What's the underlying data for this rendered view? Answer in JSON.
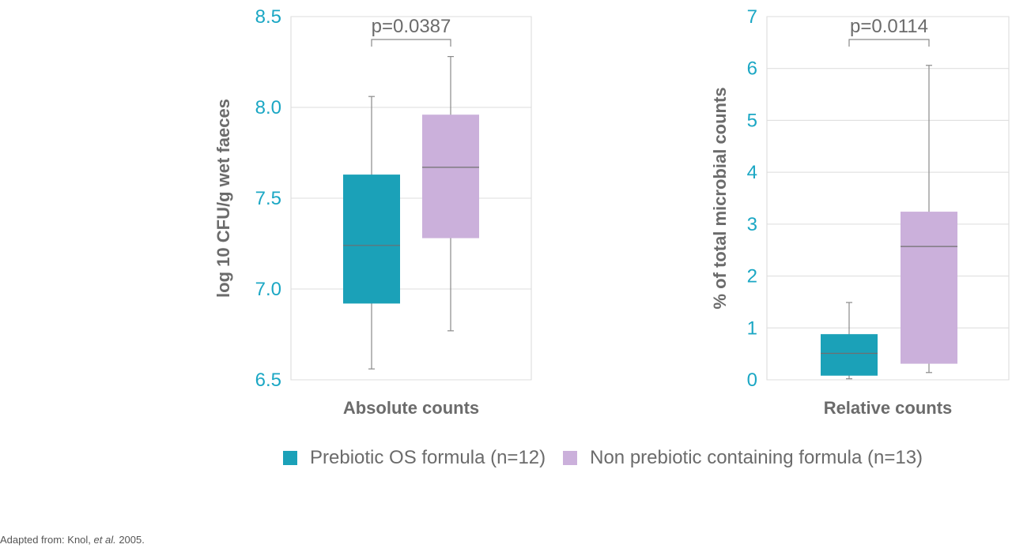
{
  "colors": {
    "prebiotic": "#1ba1b8",
    "non_prebiotic": "#cbb0db",
    "tick_text": "#1ba7c4",
    "label_text": "#6b6b6b"
  },
  "legend": {
    "prebiotic": "Prebiotic OS formula (n=12)",
    "non_prebiotic": "Non prebiotic containing formula (n=13)"
  },
  "caption": {
    "prefix": "Adapted from: Knol, ",
    "italic": "et al.",
    "suffix": " 2005."
  },
  "chart_data": [
    {
      "type": "box",
      "xlabel": "Absolute counts",
      "ylabel": "log 10 CFU/g wet faeces",
      "ylim": [
        6.5,
        8.5
      ],
      "yticks": [
        "6.5",
        "7.0",
        "7.5",
        "8.0",
        "8.5"
      ],
      "ytick_values": [
        6.5,
        7.0,
        7.5,
        8.0,
        8.5
      ],
      "grid": true,
      "annotation": "p=0.0387",
      "series": [
        {
          "name": "Prebiotic OS formula (n=12)",
          "min": 6.56,
          "q1": 6.92,
          "median": 7.24,
          "q3": 7.63,
          "max": 8.06
        },
        {
          "name": "Non prebiotic containing formula (n=13)",
          "min": 6.77,
          "q1": 7.28,
          "median": 7.67,
          "q3": 7.96,
          "max": 8.28
        }
      ]
    },
    {
      "type": "box",
      "xlabel": "Relative counts",
      "ylabel": "% of total microbial counts",
      "ylim": [
        0,
        7
      ],
      "yticks": [
        "0",
        "1",
        "2",
        "3",
        "4",
        "5",
        "6",
        "7"
      ],
      "ytick_values": [
        0,
        1,
        2,
        3,
        4,
        5,
        6,
        7
      ],
      "grid": true,
      "annotation": "p=0.0114",
      "series": [
        {
          "name": "Prebiotic OS formula (n=12)",
          "min": 0.02,
          "q1": 0.08,
          "median": 0.51,
          "q3": 0.88,
          "max": 1.49
        },
        {
          "name": "Non prebiotic containing formula (n=13)",
          "min": 0.14,
          "q1": 0.31,
          "median": 2.57,
          "q3": 3.24,
          "max": 6.06
        }
      ]
    }
  ]
}
